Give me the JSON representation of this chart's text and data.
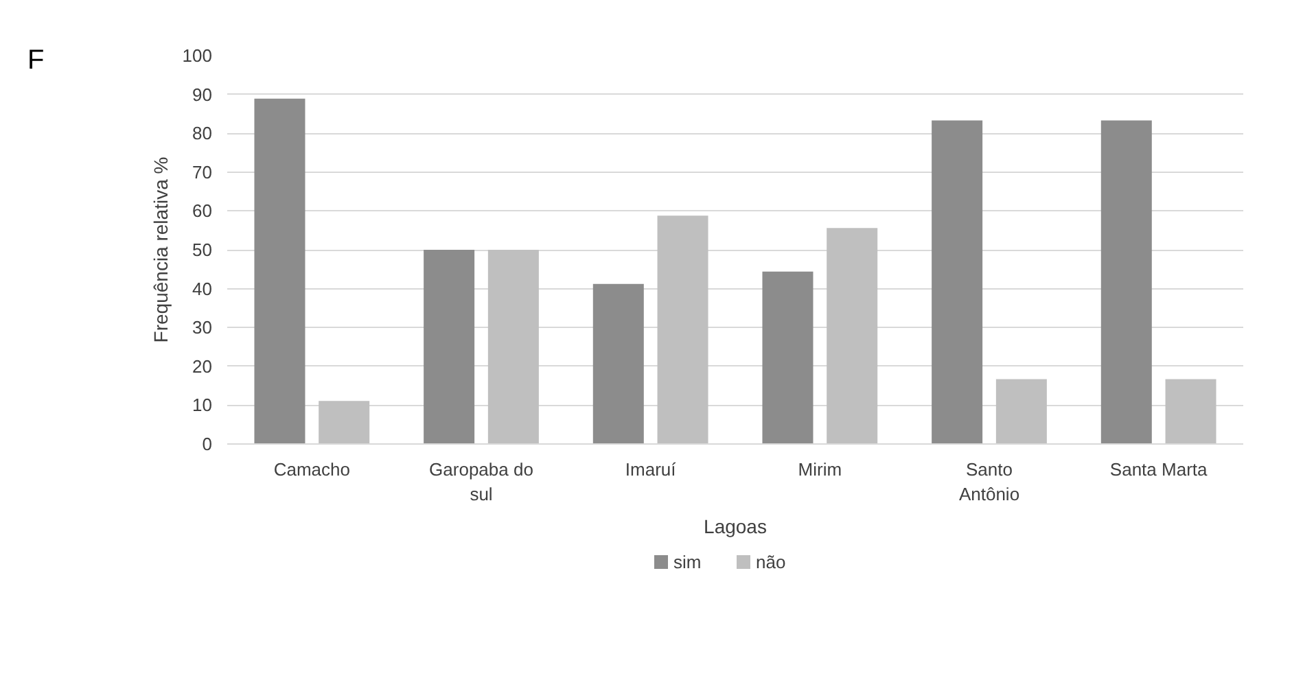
{
  "chart_data": {
    "type": "bar",
    "categories": [
      "Camacho",
      "Garopaba do sul",
      "Imaruí",
      "Mirim",
      "Santo Antônio",
      "Santa Marta"
    ],
    "series": [
      {
        "name": "sim",
        "color": "#8c8c8c",
        "values": [
          88.9,
          50,
          41.2,
          44.4,
          83.3,
          83.3
        ]
      },
      {
        "name": "não",
        "color": "#bfbfbf",
        "values": [
          11.1,
          50,
          58.8,
          55.6,
          16.7,
          16.7
        ]
      }
    ],
    "xlabel": "Lagoas",
    "ylabel": "Frequência relativa %",
    "ylim": [
      0,
      100
    ],
    "yticks": [
      0,
      10,
      20,
      30,
      40,
      50,
      60,
      70,
      80,
      90,
      100
    ],
    "grid": "y",
    "legend": "bottom",
    "annotations": [
      "F"
    ]
  }
}
